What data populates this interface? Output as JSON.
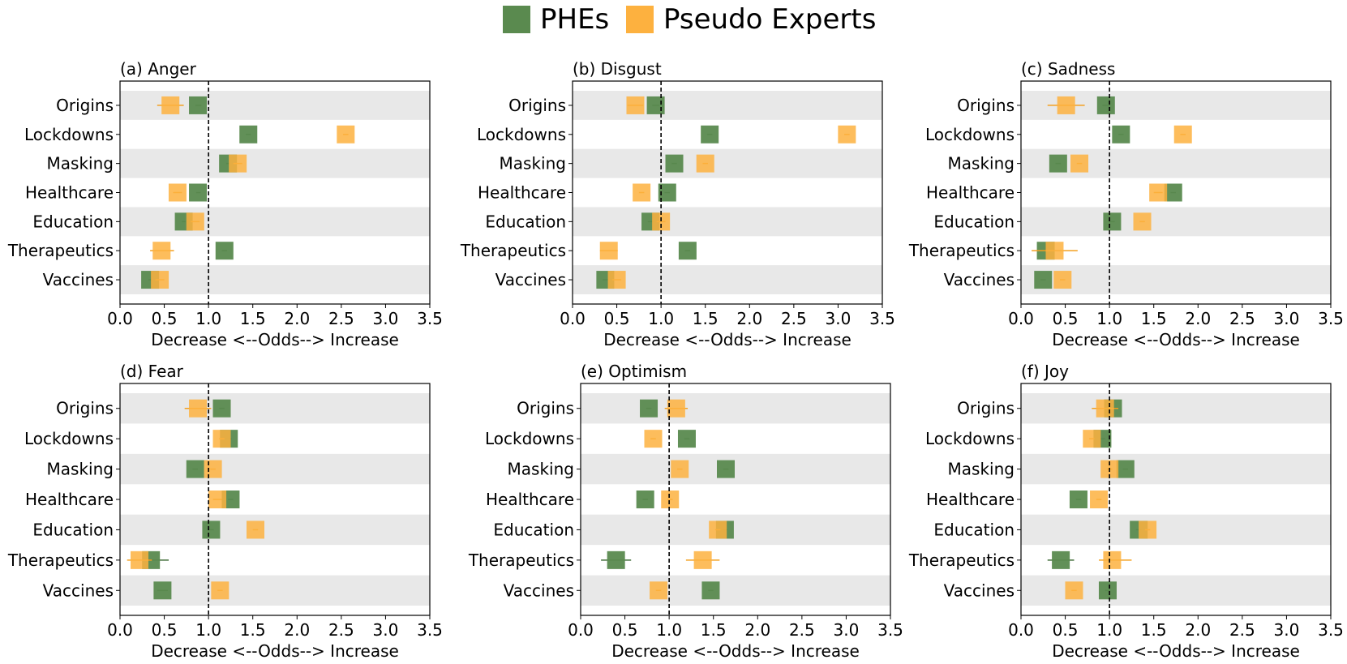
{
  "legend": {
    "phes_label": "PHEs",
    "pseudo_label": "Pseudo Experts",
    "phes_color": "#5a8a4f",
    "pseudo_color": "#fdb13f"
  },
  "chart_data": [
    {
      "type": "forest",
      "title": "(a) Anger",
      "xlabel": "Decrease <--Odds--> Increase",
      "xlim": [
        0.0,
        3.5
      ],
      "xticks": [
        "0.0",
        "0.5",
        "1.0",
        "1.5",
        "2.0",
        "2.5",
        "3.0",
        "3.5"
      ],
      "reference_line": 1.0,
      "categories": [
        "Origins",
        "Lockdowns",
        "Masking",
        "Healthcare",
        "Education",
        "Therapeutics",
        "Vaccines"
      ],
      "series": [
        {
          "name": "PHEs",
          "values": [
            0.88,
            1.45,
            1.22,
            0.88,
            0.72,
            1.18,
            0.34
          ],
          "ci": [
            [
              0.85,
              0.92
            ],
            [
              1.42,
              1.48
            ],
            [
              1.2,
              1.24
            ],
            [
              0.86,
              0.91
            ],
            [
              0.7,
              0.74
            ],
            [
              1.15,
              1.21
            ],
            [
              0.32,
              0.36
            ]
          ]
        },
        {
          "name": "Pseudo Experts",
          "values": [
            0.57,
            2.55,
            1.33,
            0.65,
            0.85,
            0.47,
            0.45
          ],
          "ci": [
            [
              0.42,
              0.72
            ],
            [
              2.52,
              2.58
            ],
            [
              1.28,
              1.38
            ],
            [
              0.6,
              0.7
            ],
            [
              0.8,
              0.9
            ],
            [
              0.34,
              0.61
            ],
            [
              0.4,
              0.5
            ]
          ]
        }
      ]
    },
    {
      "type": "forest",
      "title": "(b) Disgust",
      "xlabel": "Decrease <--Odds--> Increase",
      "xlim": [
        0.0,
        3.5
      ],
      "xticks": [
        "0.0",
        "0.5",
        "1.0",
        "1.5",
        "2.0",
        "2.5",
        "3.0",
        "3.5"
      ],
      "reference_line": 1.0,
      "categories": [
        "Origins",
        "Lockdowns",
        "Masking",
        "Healthcare",
        "Education",
        "Therapeutics",
        "Vaccines"
      ],
      "series": [
        {
          "name": "PHEs",
          "values": [
            0.94,
            1.55,
            1.15,
            1.07,
            0.88,
            1.3,
            0.37
          ],
          "ci": [
            [
              0.9,
              0.98
            ],
            [
              1.52,
              1.58
            ],
            [
              1.12,
              1.18
            ],
            [
              1.04,
              1.1
            ],
            [
              0.85,
              0.91
            ],
            [
              1.27,
              1.33
            ],
            [
              0.34,
              0.4
            ]
          ]
        },
        {
          "name": "Pseudo Experts",
          "values": [
            0.71,
            3.1,
            1.5,
            0.78,
            1.0,
            0.41,
            0.5
          ],
          "ci": [
            [
              0.62,
              0.8
            ],
            [
              3.07,
              3.13
            ],
            [
              1.47,
              1.53
            ],
            [
              0.75,
              0.81
            ],
            [
              0.95,
              1.05
            ],
            [
              0.31,
              0.51
            ],
            [
              0.45,
              0.55
            ]
          ]
        }
      ]
    },
    {
      "type": "forest",
      "title": "(c) Sadness",
      "xlabel": "Decrease <--Odds--> Increase",
      "xlim": [
        0.0,
        3.5
      ],
      "xticks": [
        "0.0",
        "0.5",
        "1.0",
        "1.5",
        "2.0",
        "2.5",
        "3.0",
        "3.5"
      ],
      "reference_line": 1.0,
      "categories": [
        "Origins",
        "Lockdowns",
        "Masking",
        "Healthcare",
        "Education",
        "Therapeutics",
        "Vaccines"
      ],
      "series": [
        {
          "name": "PHEs",
          "values": [
            0.96,
            1.13,
            0.42,
            1.72,
            1.03,
            0.28,
            0.25
          ],
          "ci": [
            [
              0.92,
              1.0
            ],
            [
              1.1,
              1.16
            ],
            [
              0.39,
              0.45
            ],
            [
              1.69,
              1.75
            ],
            [
              1.0,
              1.06
            ],
            [
              0.25,
              0.31
            ],
            [
              0.22,
              0.28
            ]
          ]
        },
        {
          "name": "Pseudo Experts",
          "values": [
            0.51,
            1.83,
            0.66,
            1.55,
            1.37,
            0.38,
            0.47
          ],
          "ci": [
            [
              0.3,
              0.72
            ],
            [
              1.8,
              1.86
            ],
            [
              0.63,
              0.69
            ],
            [
              1.5,
              1.6
            ],
            [
              1.34,
              1.4
            ],
            [
              0.12,
              0.64
            ],
            [
              0.44,
              0.5
            ]
          ]
        }
      ]
    },
    {
      "type": "forest",
      "title": "(d) Fear",
      "xlabel": "Decrease <--Odds--> Increase",
      "xlim": [
        0.0,
        3.5
      ],
      "xticks": [
        "0.0",
        "0.5",
        "1.0",
        "1.5",
        "2.0",
        "2.5",
        "3.0",
        "3.5"
      ],
      "reference_line": 1.0,
      "categories": [
        "Origins",
        "Lockdowns",
        "Masking",
        "Healthcare",
        "Education",
        "Therapeutics",
        "Vaccines"
      ],
      "series": [
        {
          "name": "PHEs",
          "values": [
            1.15,
            1.23,
            0.85,
            1.25,
            1.03,
            0.35,
            0.48
          ],
          "ci": [
            [
              1.12,
              1.18
            ],
            [
              1.2,
              1.26
            ],
            [
              0.82,
              0.88
            ],
            [
              1.22,
              1.28
            ],
            [
              1.0,
              1.06
            ],
            [
              0.25,
              0.55
            ],
            [
              0.42,
              0.54
            ]
          ]
        },
        {
          "name": "Pseudo Experts",
          "values": [
            0.88,
            1.15,
            1.05,
            1.1,
            1.53,
            0.22,
            1.13
          ],
          "ci": [
            [
              0.73,
              1.03
            ],
            [
              1.12,
              1.18
            ],
            [
              1.02,
              1.08
            ],
            [
              1.05,
              1.15
            ],
            [
              1.5,
              1.56
            ],
            [
              0.08,
              0.36
            ],
            [
              1.1,
              1.16
            ]
          ]
        }
      ]
    },
    {
      "type": "forest",
      "title": "(e) Optimism",
      "xlabel": "Decrease <--Odds--> Increase",
      "xlim": [
        0.0,
        3.5
      ],
      "xticks": [
        "0.0",
        "0.5",
        "1.0",
        "1.5",
        "2.0",
        "2.5",
        "3.0",
        "3.5"
      ],
      "reference_line": 1.0,
      "categories": [
        "Origins",
        "Lockdowns",
        "Masking",
        "Healthcare",
        "Education",
        "Therapeutics",
        "Vaccines"
      ],
      "series": [
        {
          "name": "PHEs",
          "values": [
            0.77,
            1.2,
            1.64,
            0.73,
            1.63,
            0.4,
            1.47
          ],
          "ci": [
            [
              0.74,
              0.8
            ],
            [
              1.17,
              1.23
            ],
            [
              1.61,
              1.67
            ],
            [
              0.7,
              0.76
            ],
            [
              1.6,
              1.66
            ],
            [
              0.23,
              0.57
            ],
            [
              1.44,
              1.5
            ]
          ]
        },
        {
          "name": "Pseudo Experts",
          "values": [
            1.08,
            0.82,
            1.12,
            1.01,
            1.55,
            1.38,
            0.88
          ],
          "ci": [
            [
              0.95,
              1.21
            ],
            [
              0.79,
              0.85
            ],
            [
              1.09,
              1.15
            ],
            [
              0.98,
              1.04
            ],
            [
              1.52,
              1.58
            ],
            [
              1.19,
              1.57
            ],
            [
              0.85,
              0.91
            ]
          ]
        }
      ]
    },
    {
      "type": "forest",
      "title": "(f) Joy",
      "xlabel": "Decrease <--Odds--> Increase",
      "xlim": [
        0.0,
        3.5
      ],
      "xticks": [
        "0.0",
        "0.5",
        "1.0",
        "1.5",
        "2.0",
        "2.5",
        "3.0",
        "3.5"
      ],
      "reference_line": 1.0,
      "categories": [
        "Origins",
        "Lockdowns",
        "Masking",
        "Healthcare",
        "Education",
        "Therapeutics",
        "Vaccines"
      ],
      "series": [
        {
          "name": "PHEs",
          "values": [
            1.04,
            0.92,
            1.18,
            0.65,
            1.33,
            0.45,
            0.98
          ],
          "ci": [
            [
              1.01,
              1.07
            ],
            [
              0.89,
              0.95
            ],
            [
              1.15,
              1.21
            ],
            [
              0.62,
              0.68
            ],
            [
              1.3,
              1.36
            ],
            [
              0.3,
              0.6
            ],
            [
              0.95,
              1.01
            ]
          ]
        },
        {
          "name": "Pseudo Experts",
          "values": [
            0.95,
            0.8,
            1.0,
            0.88,
            1.43,
            1.03,
            0.6
          ],
          "ci": [
            [
              0.8,
              1.1
            ],
            [
              0.77,
              0.83
            ],
            [
              0.97,
              1.03
            ],
            [
              0.85,
              0.91
            ],
            [
              1.4,
              1.46
            ],
            [
              0.88,
              1.25
            ],
            [
              0.57,
              0.63
            ]
          ]
        }
      ]
    }
  ]
}
